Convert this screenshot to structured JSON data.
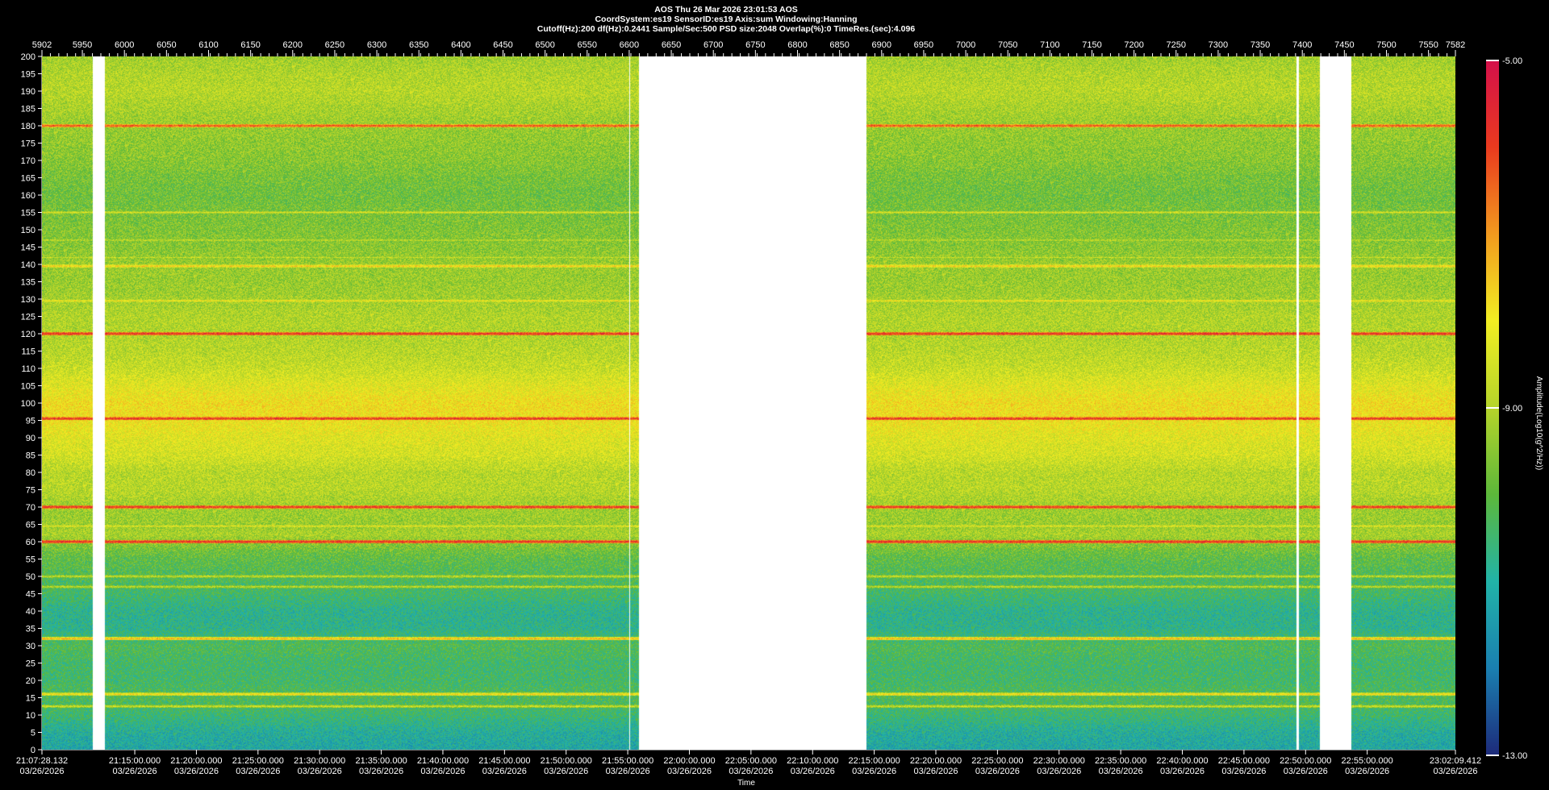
{
  "header": {
    "line1": "AOS  Thu 26 Mar 2026 23:01:53  AOS",
    "line2": "CoordSystem:es19   SensorID:es19    Axis:sum    Windowing:Hanning",
    "line3": "Cutoff(Hz):200       df(Hz):0.2441       Sample/Sec:500       PSD size:2048        Overlap(%):0            TimeRes.(sec):4.096"
  },
  "chart_data": {
    "type": "heatmap",
    "title": "",
    "xlabel": "Time",
    "ylabel": "",
    "colorbar_label": "Amplitude(Log10(g^2/Hz))",
    "colorbar_ticks": [
      "-5.00",
      "-9.00",
      "-13.00"
    ],
    "colorbar_range": [
      -13.0,
      -5.0
    ],
    "colormap": [
      "#1d2a7a",
      "#1a7fb0",
      "#21b3a8",
      "#5cb83a",
      "#b5d42a",
      "#f2ee22",
      "#f29a1e",
      "#ea3a1e",
      "#d4104a"
    ],
    "y_range": [
      0,
      200
    ],
    "y_ticks": [
      0,
      5,
      10,
      15,
      20,
      25,
      30,
      35,
      40,
      45,
      50,
      55,
      60,
      65,
      70,
      75,
      80,
      85,
      90,
      95,
      100,
      105,
      110,
      115,
      120,
      125,
      130,
      135,
      140,
      145,
      150,
      155,
      160,
      165,
      170,
      175,
      180,
      185,
      190,
      195,
      200
    ],
    "x_index_range": [
      5902,
      7582
    ],
    "x_index_ticks": [
      "5902",
      "5950",
      "6000",
      "6050",
      "6100",
      "6150",
      "6200",
      "6250",
      "6300",
      "6350",
      "6400",
      "6450",
      "6500",
      "6550",
      "6600",
      "6650",
      "6700",
      "6750",
      "6800",
      "6850",
      "6900",
      "6950",
      "7000",
      "7050",
      "7100",
      "7150",
      "7200",
      "7250",
      "7300",
      "7350",
      "7400",
      "7450",
      "7500",
      "7550",
      "7582"
    ],
    "time_ticks": [
      {
        "time": "21:07:28.132",
        "date": "03/26/2026"
      },
      {
        "time": "21:15:00.000",
        "date": "03/26/2026"
      },
      {
        "time": "21:20:00.000",
        "date": "03/26/2026"
      },
      {
        "time": "21:25:00.000",
        "date": "03/26/2026"
      },
      {
        "time": "21:30:00.000",
        "date": "03/26/2026"
      },
      {
        "time": "21:35:00.000",
        "date": "03/26/2026"
      },
      {
        "time": "21:40:00.000",
        "date": "03/26/2026"
      },
      {
        "time": "21:45:00.000",
        "date": "03/26/2026"
      },
      {
        "time": "21:50:00.000",
        "date": "03/26/2026"
      },
      {
        "time": "21:55:00.000",
        "date": "03/26/2026"
      },
      {
        "time": "22:00:00.000",
        "date": "03/26/2026"
      },
      {
        "time": "22:05:00.000",
        "date": "03/26/2026"
      },
      {
        "time": "22:10:00.000",
        "date": "03/26/2026"
      },
      {
        "time": "22:15:00.000",
        "date": "03/26/2026"
      },
      {
        "time": "22:20:00.000",
        "date": "03/26/2026"
      },
      {
        "time": "22:25:00.000",
        "date": "03/26/2026"
      },
      {
        "time": "22:30:00.000",
        "date": "03/26/2026"
      },
      {
        "time": "22:35:00.000",
        "date": "03/26/2026"
      },
      {
        "time": "22:40:00.000",
        "date": "03/26/2026"
      },
      {
        "time": "22:45:00.000",
        "date": "03/26/2026"
      },
      {
        "time": "22:50:00.000",
        "date": "03/26/2026"
      },
      {
        "time": "22:55:00.000",
        "date": "03/26/2026"
      },
      {
        "time": "23:02:09.412",
        "date": "03/26/2026"
      }
    ],
    "data_gaps": [
      [
        5962,
        5977
      ],
      [
        6600,
        6601
      ],
      [
        6612,
        6882
      ],
      [
        7393,
        7396
      ],
      [
        7421,
        7458
      ]
    ],
    "amplitude_profile": [
      [
        0,
        -11.2
      ],
      [
        5,
        -11.0
      ],
      [
        10,
        -10.5
      ],
      [
        15,
        -10.2
      ],
      [
        20,
        -10.4
      ],
      [
        25,
        -10.4
      ],
      [
        30,
        -10.2
      ],
      [
        35,
        -10.8
      ],
      [
        40,
        -10.8
      ],
      [
        45,
        -10.4
      ],
      [
        50,
        -10.2
      ],
      [
        55,
        -10.0
      ],
      [
        58,
        -9.7
      ],
      [
        62,
        -9.1
      ],
      [
        65,
        -9.3
      ],
      [
        70,
        -9.2
      ],
      [
        75,
        -8.9
      ],
      [
        80,
        -8.9
      ],
      [
        85,
        -8.5
      ],
      [
        90,
        -8.3
      ],
      [
        95,
        -8.0
      ],
      [
        100,
        -7.9
      ],
      [
        105,
        -8.3
      ],
      [
        110,
        -8.7
      ],
      [
        115,
        -8.9
      ],
      [
        120,
        -9.0
      ],
      [
        125,
        -9.0
      ],
      [
        130,
        -9.2
      ],
      [
        135,
        -9.3
      ],
      [
        140,
        -9.3
      ],
      [
        145,
        -9.5
      ],
      [
        150,
        -9.6
      ],
      [
        155,
        -9.7
      ],
      [
        160,
        -9.8
      ],
      [
        165,
        -9.7
      ],
      [
        170,
        -9.5
      ],
      [
        175,
        -9.4
      ],
      [
        180,
        -9.3
      ],
      [
        185,
        -9.1
      ],
      [
        190,
        -8.9
      ],
      [
        195,
        -9.0
      ],
      [
        200,
        -9.2
      ]
    ],
    "spectral_lines": [
      {
        "hz": 180,
        "amp": -6.0
      },
      {
        "hz": 155,
        "amp": -8.3
      },
      {
        "hz": 147,
        "amp": -8.6
      },
      {
        "hz": 142,
        "amp": -8.6
      },
      {
        "hz": 139.5,
        "amp": -7.4
      },
      {
        "hz": 129.5,
        "amp": -7.8
      },
      {
        "hz": 120,
        "amp": -5.5
      },
      {
        "hz": 95.5,
        "amp": -5.6
      },
      {
        "hz": 85,
        "amp": -8.4
      },
      {
        "hz": 70,
        "amp": -5.6
      },
      {
        "hz": 64.5,
        "amp": -8.1
      },
      {
        "hz": 60,
        "amp": -5.5
      },
      {
        "hz": 50,
        "amp": -8.5
      },
      {
        "hz": 47,
        "amp": -8.6
      },
      {
        "hz": 32,
        "amp": -7.2
      },
      {
        "hz": 16,
        "amp": -7.6
      },
      {
        "hz": 12.5,
        "amp": -8.4
      }
    ]
  }
}
